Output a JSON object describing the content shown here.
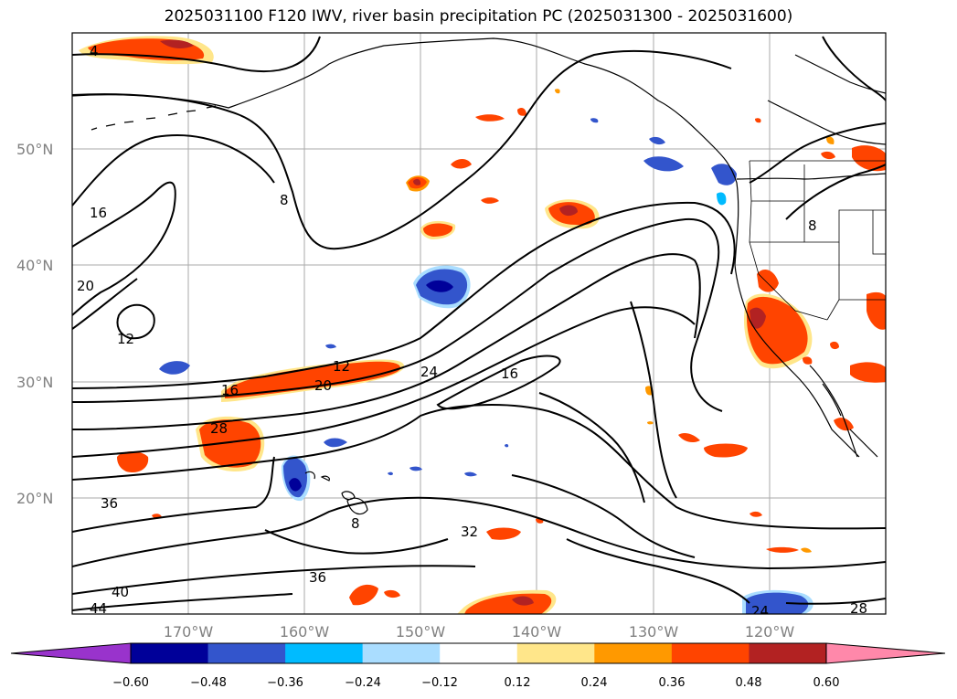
{
  "map": {
    "title": "2025031100 F120 IWV, river basin precipitation PC (2025031300 - 2025031600)",
    "lat_labels": [
      "50°N",
      "40°N",
      "30°N",
      "20°N"
    ],
    "lon_labels": [
      "170°W",
      "160°W",
      "150°W",
      "140°W",
      "130°W",
      "120°W"
    ],
    "contour_labels": [
      "4",
      "8",
      "16",
      "20",
      "12",
      "12",
      "20",
      "16",
      "24",
      "16",
      "28",
      "36",
      "32",
      "36",
      "40",
      "44",
      "24",
      "28",
      "8",
      "8"
    ],
    "gridlines": true,
    "coastlines": true,
    "state_borders": true
  },
  "colorbar": {
    "ticks": [
      "−0.60",
      "−0.48",
      "−0.36",
      "−0.24",
      "−0.12",
      "0.12",
      "0.24",
      "0.36",
      "0.48",
      "0.60"
    ],
    "colors": [
      "#9933cc",
      "#000099",
      "#3355cc",
      "#00bbff",
      "#aaddff",
      "#ffffff",
      "#ffe68a",
      "#ff9900",
      "#ff4400",
      "#b22222",
      "#ff88aa"
    ],
    "extend": "both"
  }
}
